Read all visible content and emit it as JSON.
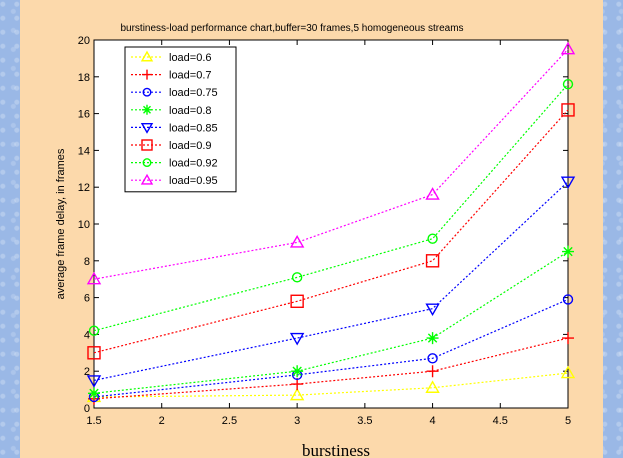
{
  "chart_data": {
    "type": "line",
    "title": "burstiness-load performance chart,buffer=30 frames,5 homogeneous streams",
    "xlabel": "burstiness",
    "ylabel": "average frame delay, in frames",
    "xlim": [
      1.5,
      5
    ],
    "ylim": [
      0,
      20
    ],
    "xticks": [
      "1.5",
      "2",
      "2.5",
      "3",
      "3.5",
      "4",
      "4.5",
      "5"
    ],
    "yticks": [
      "0",
      "2",
      "4",
      "6",
      "8",
      "10",
      "12",
      "14",
      "16",
      "18",
      "20"
    ],
    "x": [
      1.5,
      3,
      4,
      5
    ],
    "grid": false,
    "legend_position": "top-left",
    "series": [
      {
        "name": "load=0.6",
        "values": [
          0.6,
          0.7,
          1.1,
          1.9
        ],
        "color": "#ffff00",
        "marker": "triangle-up"
      },
      {
        "name": "load=0.7",
        "values": [
          0.5,
          1.3,
          2.0,
          3.8
        ],
        "color": "#ff0000",
        "marker": "plus"
      },
      {
        "name": "load=0.75",
        "values": [
          0.6,
          1.8,
          2.7,
          5.9
        ],
        "color": "#0000ff",
        "marker": "circle"
      },
      {
        "name": "load=0.8",
        "values": [
          0.8,
          2.0,
          3.8,
          8.5
        ],
        "color": "#00ff00",
        "marker": "star"
      },
      {
        "name": "load=0.85",
        "values": [
          1.5,
          3.8,
          5.4,
          12.3
        ],
        "color": "#0000ff",
        "marker": "triangle-down"
      },
      {
        "name": "load=0.9",
        "values": [
          3.0,
          5.8,
          8.0,
          16.2
        ],
        "color": "#ff0000",
        "marker": "square"
      },
      {
        "name": "load=0.92",
        "values": [
          4.2,
          7.1,
          9.2,
          17.6
        ],
        "color": "#00ff00",
        "marker": "circle"
      },
      {
        "name": "load=0.95",
        "values": [
          7.0,
          9.0,
          11.6,
          19.5
        ],
        "color": "#ff00ff",
        "marker": "triangle-up"
      }
    ]
  }
}
